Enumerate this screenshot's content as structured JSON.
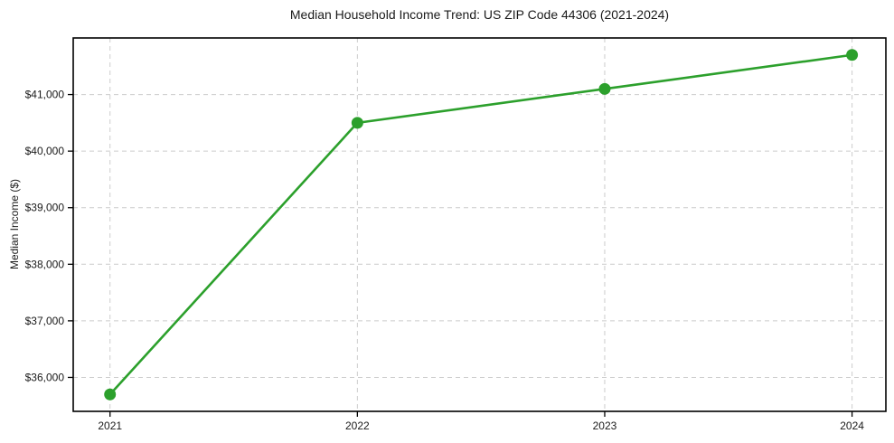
{
  "chart_data": {
    "type": "line",
    "title": "Median Household Income Trend: US ZIP Code 44306 (2021-2024)",
    "xlabel": "",
    "ylabel": "Median Income ($)",
    "categories": [
      "2021",
      "2022",
      "2023",
      "2024"
    ],
    "series": [
      {
        "name": "Median Household Income",
        "values": [
          35700,
          40500,
          41100,
          41700
        ]
      }
    ],
    "ylim": [
      35400,
      42000
    ],
    "yticks": [
      {
        "value": 36000,
        "label": "$36,000"
      },
      {
        "value": 37000,
        "label": "$37,000"
      },
      {
        "value": 38000,
        "label": "$38,000"
      },
      {
        "value": 39000,
        "label": "$39,000"
      },
      {
        "value": 40000,
        "label": "$40,000"
      },
      {
        "value": 41000,
        "label": "$41,000"
      }
    ],
    "grid": true,
    "legend_position": "none",
    "colors": {
      "line": "#2ca02c",
      "marker": "#2ca02c",
      "grid": "#cccccc",
      "spine": "#000000",
      "text": "#1a1a1a",
      "background": "#ffffff"
    }
  }
}
